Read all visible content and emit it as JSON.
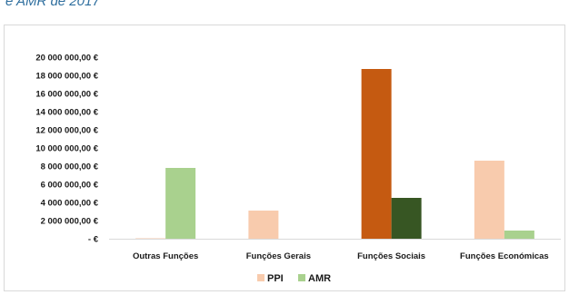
{
  "caption": "e AMR de 2017",
  "chart_data": {
    "type": "bar",
    "categories": [
      "Outras Funções",
      "Funções Gerais",
      "Funções Sociais",
      "Funções Económicas"
    ],
    "series": [
      {
        "name": "PPI",
        "values": [
          50000,
          3100000,
          18700000,
          8600000
        ],
        "colors": [
          "#f8cbad",
          "#f8cbad",
          "#c55a11",
          "#f8cbad"
        ]
      },
      {
        "name": "AMR",
        "values": [
          7800000,
          0,
          4500000,
          900000
        ],
        "colors": [
          "#a9d18e",
          "#a9d18e",
          "#375623",
          "#a9d18e"
        ]
      }
    ],
    "yticks": [
      "-  €",
      "2 000 000,00 €",
      "4 000 000,00 €",
      "6 000 000,00 €",
      "8 000 000,00 €",
      "10 000 000,00 €",
      "12 000 000,00 €",
      "14 000 000,00 €",
      "16 000 000,00 €",
      "18 000 000,00 €",
      "20 000 000,00 €"
    ],
    "ylim": [
      0,
      20000000
    ],
    "legend": {
      "position": "bottom"
    },
    "legend_colors": [
      "#f8cbad",
      "#a9d18e"
    ],
    "grid": false,
    "title": "",
    "xlabel": "",
    "ylabel": ""
  }
}
